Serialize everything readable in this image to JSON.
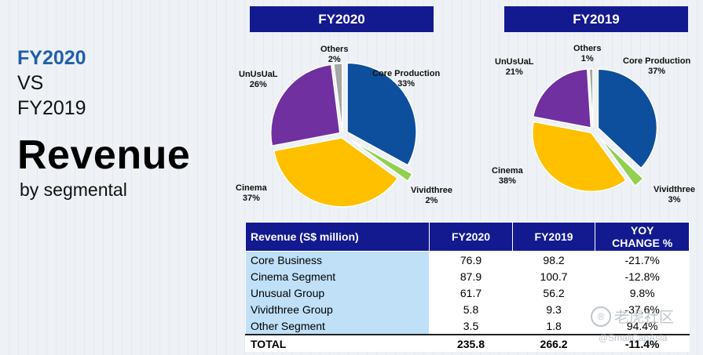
{
  "heading": {
    "line1": "FY2020",
    "line2": "VS",
    "line3": "FY2019",
    "big": "Revenue",
    "sub": "by segmental"
  },
  "chart_data": [
    {
      "type": "pie",
      "title": "FY2020",
      "labels": [
        "Core Production",
        "Vividthree",
        "Cinema",
        "UnUsUaL",
        "Others"
      ],
      "values": [
        33,
        2,
        37,
        26,
        2
      ],
      "display": [
        "33%",
        "2%",
        "37%",
        "26%",
        "2%"
      ],
      "colors": [
        "#0d4f9c",
        "#92d050",
        "#ffc000",
        "#7030a0",
        "#a6a6a6"
      ]
    },
    {
      "type": "pie",
      "title": "FY2019",
      "labels": [
        "Core Production",
        "Vividthree",
        "Cinema",
        "UnUsUaL",
        "Others"
      ],
      "values": [
        37,
        3,
        38,
        21,
        1
      ],
      "display": [
        "37%",
        "3%",
        "38%",
        "21%",
        "1%"
      ],
      "colors": [
        "#0d4f9c",
        "#92d050",
        "#ffc000",
        "#7030a0",
        "#a6a6a6"
      ]
    },
    {
      "type": "table",
      "columns": [
        "Revenue (S$ million)",
        "FY2020",
        "FY2019",
        "YOY CHANGE %"
      ],
      "header_lines": [
        [
          "Revenue (S$ million)"
        ],
        [
          "FY2020"
        ],
        [
          "FY2019"
        ],
        [
          "YOY",
          "CHANGE %"
        ]
      ],
      "rows": [
        [
          "Core Business",
          "76.9",
          "98.2",
          "-21.7%"
        ],
        [
          "Cinema Segment",
          "87.9",
          "100.7",
          "-12.8%"
        ],
        [
          "Unusual Group",
          "61.7",
          "56.2",
          "9.8%"
        ],
        [
          "Vividthree Group",
          "5.8",
          "9.3",
          "-37.6%"
        ],
        [
          "Other Segment",
          "3.5",
          "1.8",
          "94.4%"
        ]
      ],
      "total": [
        "TOTAL",
        "235.8",
        "266.2",
        "-11.4%"
      ]
    }
  ],
  "watermark": {
    "logo": "®",
    "text": "老虎社区",
    "sub": "@SmallCapAsia"
  }
}
